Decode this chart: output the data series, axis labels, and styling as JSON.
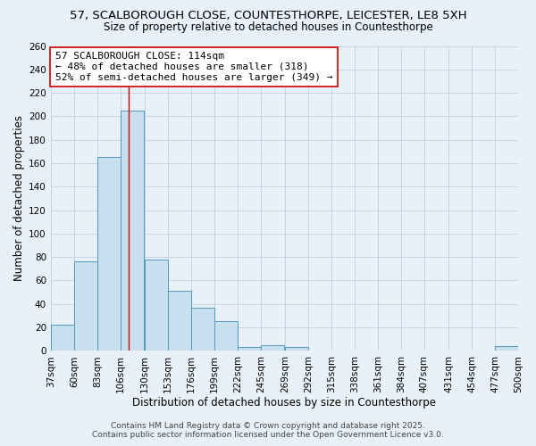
{
  "title_line1": "57, SCALBOROUGH CLOSE, COUNTESTHORPE, LEICESTER, LE8 5XH",
  "title_line2": "Size of property relative to detached houses in Countesthorpe",
  "xlabel": "Distribution of detached houses by size in Countesthorpe",
  "ylabel": "Number of detached properties",
  "bar_left_edges": [
    37,
    60,
    83,
    106,
    130,
    153,
    176,
    199,
    222,
    245,
    269,
    292,
    315,
    338,
    361,
    384,
    407,
    431,
    454,
    477
  ],
  "bar_heights": [
    22,
    76,
    165,
    205,
    78,
    51,
    37,
    25,
    3,
    5,
    3,
    0,
    0,
    0,
    0,
    0,
    0,
    0,
    0,
    4
  ],
  "bin_width": 23,
  "bar_color": "#c8dff0",
  "bar_edge_color": "#5599bb",
  "vline_x": 114,
  "vline_color": "#cc0000",
  "annotation_text": "57 SCALBOROUGH CLOSE: 114sqm\n← 48% of detached houses are smaller (318)\n52% of semi-detached houses are larger (349) →",
  "annotation_box_color": "white",
  "annotation_box_edge_color": "#cc0000",
  "ylim": [
    0,
    260
  ],
  "yticks": [
    0,
    20,
    40,
    60,
    80,
    100,
    120,
    140,
    160,
    180,
    200,
    220,
    240,
    260
  ],
  "xtick_labels": [
    "37sqm",
    "60sqm",
    "83sqm",
    "106sqm",
    "130sqm",
    "153sqm",
    "176sqm",
    "199sqm",
    "222sqm",
    "245sqm",
    "269sqm",
    "292sqm",
    "315sqm",
    "338sqm",
    "361sqm",
    "384sqm",
    "407sqm",
    "431sqm",
    "454sqm",
    "477sqm",
    "500sqm"
  ],
  "grid_color": "#c0d4e8",
  "background_color": "#e8f0f8",
  "footer_line1": "Contains HM Land Registry data © Crown copyright and database right 2025.",
  "footer_line2": "Contains public sector information licensed under the Open Government Licence v3.0.",
  "title_fontsize": 9.5,
  "subtitle_fontsize": 8.5,
  "axis_label_fontsize": 8.5,
  "tick_fontsize": 7.5,
  "annotation_fontsize": 8,
  "footer_fontsize": 6.5
}
